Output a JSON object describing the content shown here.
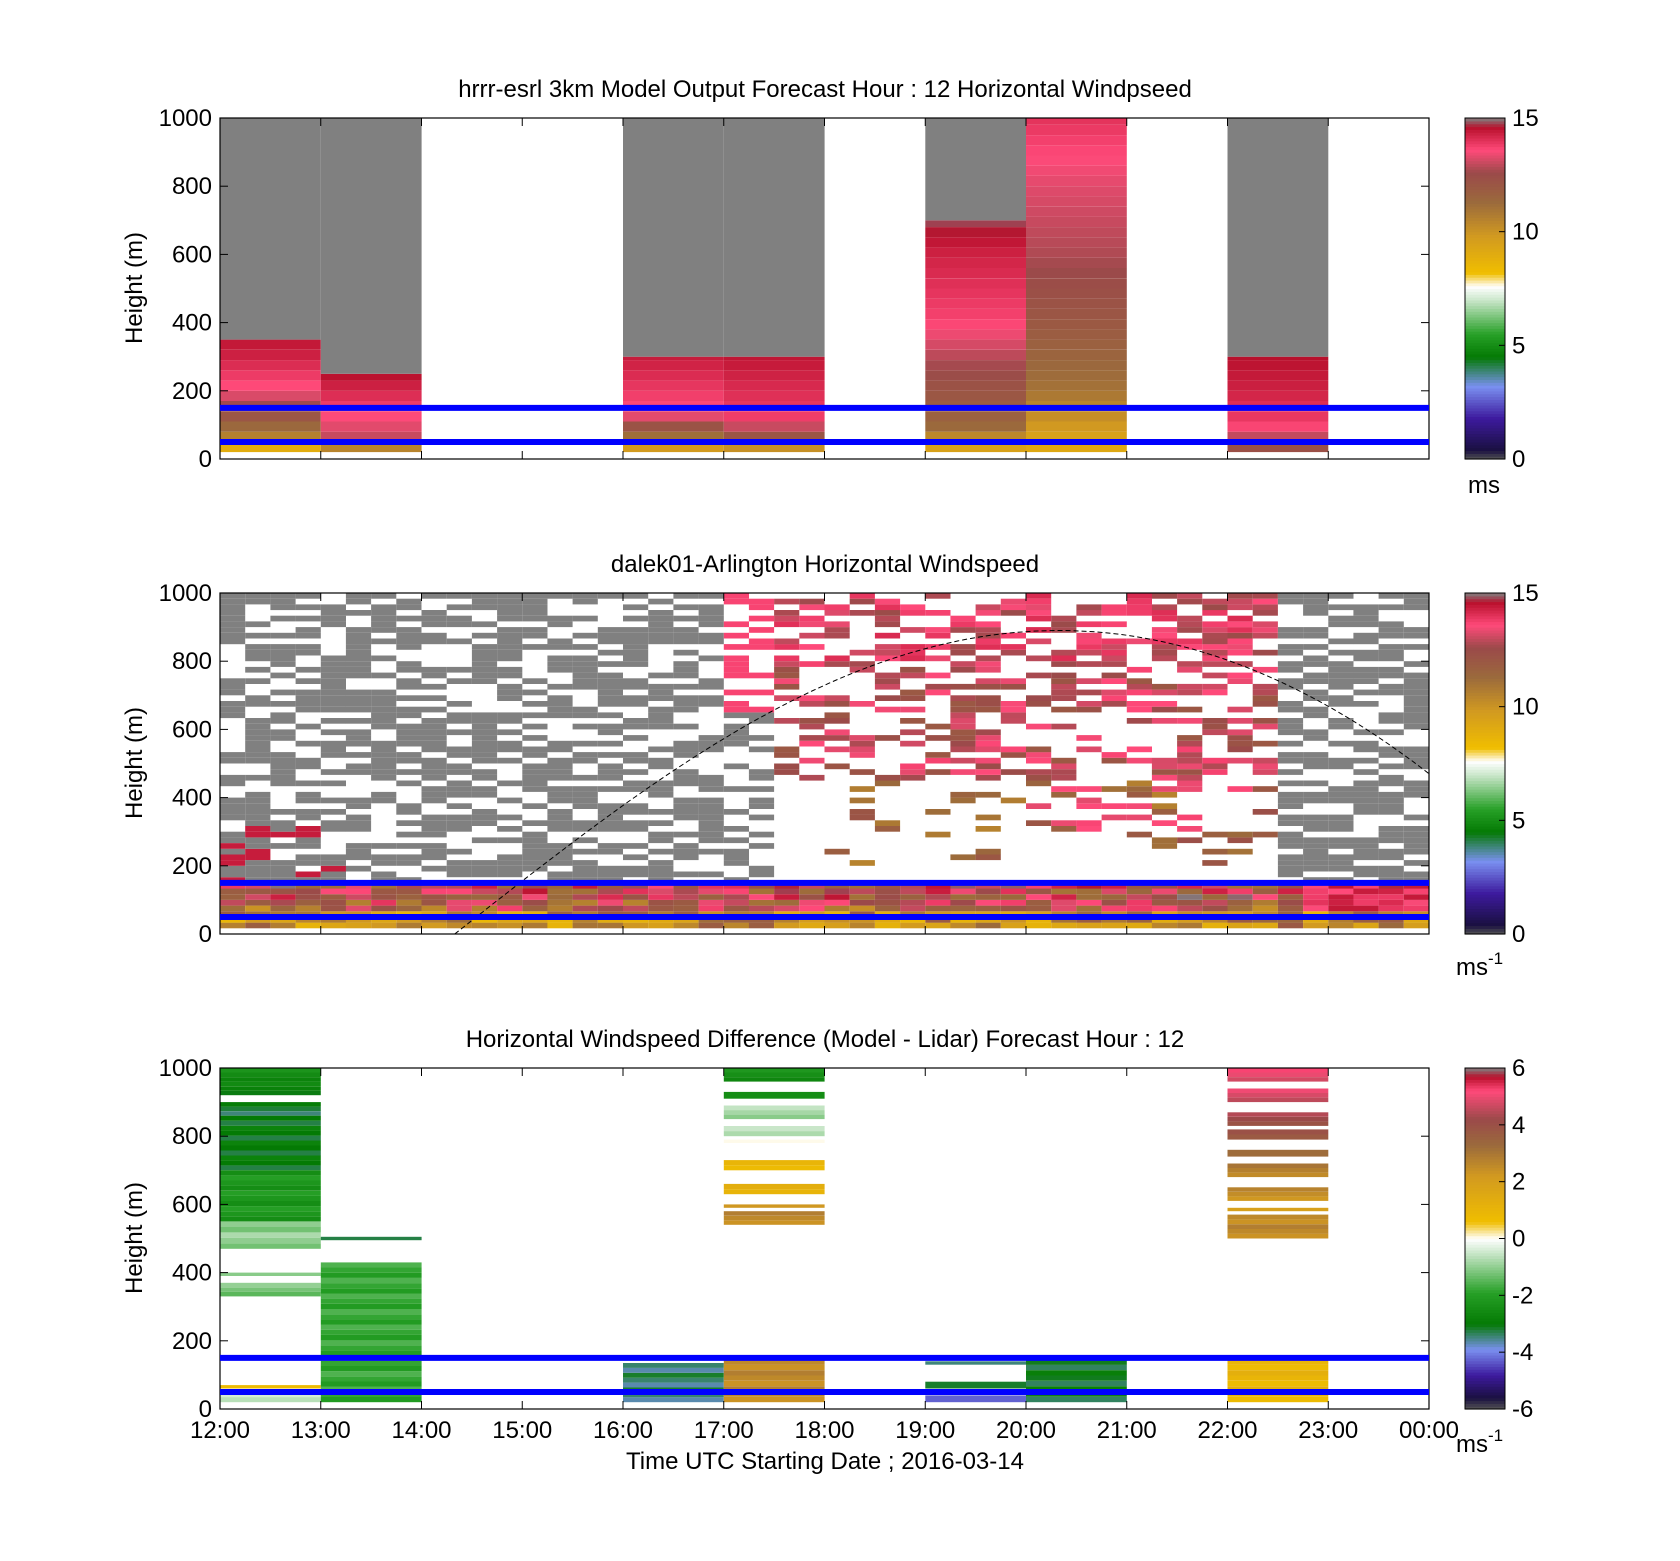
{
  "figure": {
    "xaxis": {
      "ticks": [
        "12:00",
        "13:00",
        "14:00",
        "15:00",
        "16:00",
        "17:00",
        "18:00",
        "19:00",
        "20:00",
        "21:00",
        "22:00",
        "23:00",
        "00:00"
      ],
      "label": "Time UTC  Starting Date ; 2016-03-14"
    },
    "ylabel": "Height (m)",
    "yticks": [
      "0",
      "200",
      "400",
      "600",
      "800",
      "1000"
    ]
  },
  "colors": {
    "bottom_stop": "#555555",
    "navy": "#1a1040",
    "purple": "#3d1a9e",
    "blue": "#7a90f0",
    "green_dark": "#047a04",
    "green": "#27a027",
    "green_light": "#c9e6c9",
    "white_band": "#ffffff",
    "gold": "#f0be00",
    "gold_dark": "#d29a20",
    "brown": "#9b6a3c",
    "rose_brown": "#9b4a4a",
    "pink": "#ff4a7a",
    "crimson": "#b8102c",
    "no_data_gray": "#808080",
    "reference_line": "#0000ff"
  },
  "chart_data": [
    {
      "type": "heatmap",
      "title": "hrrr-esrl 3km Model Output   Forecast Hour : 12 Horizontal Windpseed",
      "xlabel": "",
      "ylabel": "Height (m)",
      "ylim": [
        0,
        1000
      ],
      "colorbar": {
        "range": [
          0,
          15
        ],
        "ticks": [
          "0",
          "5",
          "10",
          "15"
        ],
        "label": "ms"
      },
      "reference_lines_m": [
        50,
        150
      ],
      "columns": [
        {
          "hour": "12:00",
          "top_m": 350,
          "profile_ms": [
            [
              20,
              8
            ],
            [
              60,
              10.5
            ],
            [
              120,
              12
            ],
            [
              200,
              13.5
            ],
            [
              300,
              14.3
            ],
            [
              350,
              14.5
            ]
          ]
        },
        {
          "hour": "13:00",
          "top_m": 250,
          "profile_ms": [
            [
              20,
              9
            ],
            [
              60,
              13
            ],
            [
              150,
              13.8
            ],
            [
              250,
              14.6
            ]
          ]
        },
        {
          "hour": "16:00",
          "top_m": 300,
          "profile_ms": [
            [
              20,
              9
            ],
            [
              60,
              11
            ],
            [
              130,
              13.5
            ],
            [
              300,
              14.4
            ]
          ]
        },
        {
          "hour": "17:00",
          "top_m": 300,
          "profile_ms": [
            [
              20,
              9
            ],
            [
              60,
              12
            ],
            [
              120,
              13.8
            ],
            [
              300,
              14.5
            ]
          ]
        },
        {
          "hour": "19:00",
          "top_m": 700,
          "profile_ms": [
            [
              20,
              9
            ],
            [
              100,
              11.5
            ],
            [
              250,
              12.5
            ],
            [
              400,
              13.7
            ],
            [
              600,
              14.3
            ],
            [
              700,
              14.8
            ]
          ]
        },
        {
          "hour": "20:00",
          "top_m": 1000,
          "profile_ms": [
            [
              20,
              9
            ],
            [
              200,
              11
            ],
            [
              400,
              12
            ],
            [
              600,
              12.8
            ],
            [
              800,
              13.3
            ],
            [
              1000,
              14
            ]
          ]
        },
        {
          "hour": "22:00",
          "top_m": 300,
          "profile_ms": [
            [
              20,
              12
            ],
            [
              100,
              13.8
            ],
            [
              200,
              14.3
            ],
            [
              300,
              14.6
            ]
          ]
        }
      ]
    },
    {
      "type": "heatmap",
      "title": "dalek01-Arlington  Horizontal Windspeed",
      "xlabel": "",
      "ylabel": "Height (m)",
      "ylim": [
        0,
        1000
      ],
      "colorbar": {
        "range": [
          0,
          15
        ],
        "ticks": [
          "0",
          "5",
          "10",
          "15"
        ],
        "label": "ms",
        "label_exponent": "-1"
      },
      "reference_lines_m": [
        50,
        150
      ],
      "overlay": "dashed curve rising from 0 m at 14:20 to ~890 m near 20:00 and falling to ~470 m at 00:00"
    },
    {
      "type": "heatmap",
      "title": "Horizontal Windspeed Difference (Model - Lidar) Forecast Hour : 12",
      "xlabel": "Time UTC  Starting Date ; 2016-03-14",
      "ylabel": "Height (m)",
      "ylim": [
        0,
        1000
      ],
      "colorbar": {
        "range": [
          -6,
          6
        ],
        "ticks": [
          "-6",
          "-4",
          "-2",
          "0",
          "2",
          "4",
          "6"
        ],
        "label": "ms",
        "label_exponent": "-1"
      },
      "reference_lines_m": [
        50,
        150
      ],
      "columns": [
        {
          "hour": "12:00",
          "bands": [
            [
              960,
              1000,
              -2.5
            ],
            [
              920,
              960,
              -2.8
            ],
            [
              860,
              900,
              -3.2
            ],
            [
              700,
              860,
              -3
            ],
            [
              550,
              700,
              -2.2
            ],
            [
              470,
              550,
              -1
            ],
            [
              390,
              400,
              -0.8
            ],
            [
              330,
              370,
              -1.2
            ],
            [
              60,
              70,
              1
            ],
            [
              20,
              50,
              -0.4
            ]
          ]
        },
        {
          "hour": "13:00",
          "bands": [
            [
              495,
              505,
              -3
            ],
            [
              20,
              430,
              -1.8
            ]
          ]
        },
        {
          "hour": "16:00",
          "bands": [
            [
              20,
              135,
              -3.4
            ]
          ]
        },
        {
          "hour": "17:00",
          "bands": [
            [
              960,
              1000,
              -2.4
            ],
            [
              910,
              930,
              -2.2
            ],
            [
              850,
              890,
              -0.8
            ],
            [
              800,
              830,
              -0.5
            ],
            [
              780,
              790,
              0.3
            ],
            [
              700,
              730,
              1
            ],
            [
              630,
              660,
              1.3
            ],
            [
              590,
              600,
              2.5
            ],
            [
              540,
              580,
              2.6
            ],
            [
              20,
              145,
              2.6
            ]
          ]
        },
        {
          "hour": "19:00",
          "bands": [
            [
              130,
              140,
              -3.2
            ],
            [
              60,
              80,
              -2.9
            ],
            [
              20,
              40,
              -4
            ]
          ]
        },
        {
          "hour": "20:00",
          "bands": [
            [
              20,
              145,
              -3.1
            ]
          ]
        },
        {
          "hour": "22:00",
          "bands": [
            [
              960,
              1000,
              5
            ],
            [
              900,
              940,
              4.8
            ],
            [
              830,
              870,
              4.2
            ],
            [
              790,
              820,
              4
            ],
            [
              740,
              760,
              3.5
            ],
            [
              680,
              720,
              2.8
            ],
            [
              610,
              650,
              2.5
            ],
            [
              580,
              590,
              2.2
            ],
            [
              500,
              570,
              2.6
            ],
            [
              20,
              145,
              1
            ]
          ]
        }
      ]
    }
  ]
}
